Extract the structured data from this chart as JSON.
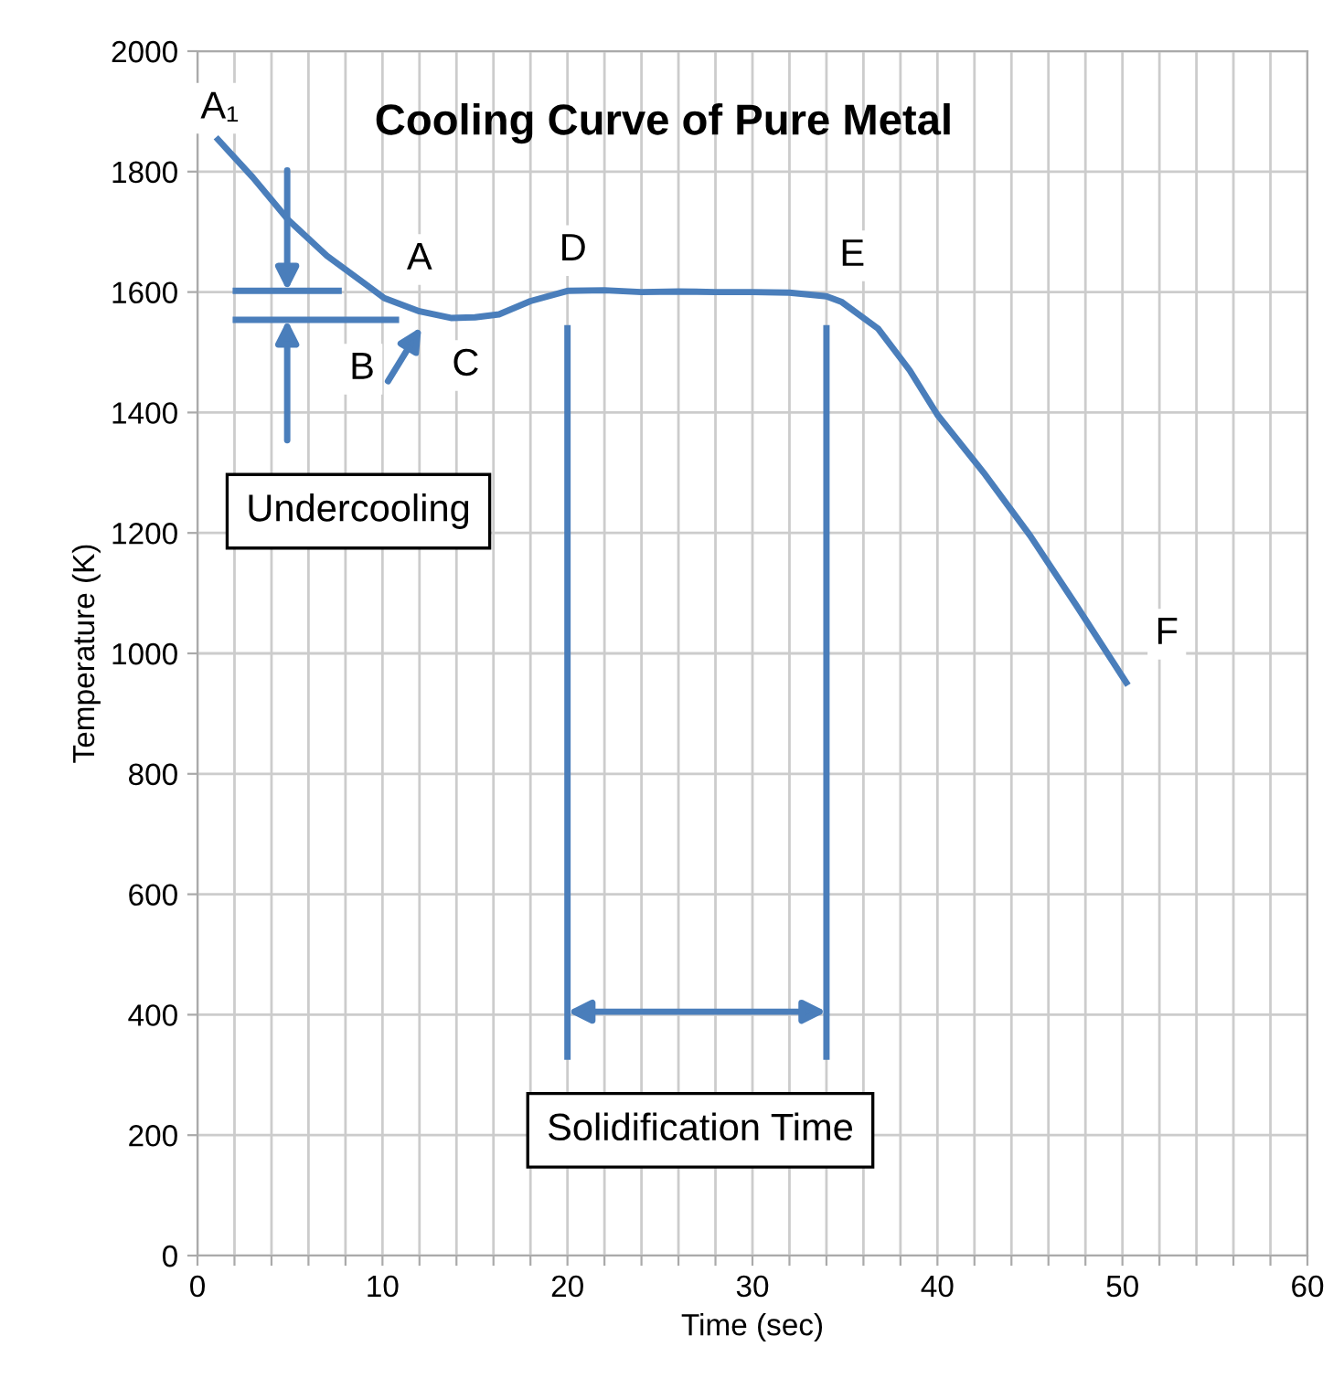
{
  "chart_data": {
    "type": "line",
    "title": "Cooling Curve of Pure Metal",
    "xlabel": "Time (sec)",
    "ylabel": "Temperature (K)",
    "xlim": [
      0,
      60
    ],
    "ylim": [
      0,
      2000
    ],
    "xticks": [
      0,
      {
        "value": 2,
        "label": null
      },
      {
        "value": 4,
        "label": null
      },
      {
        "value": 6,
        "label": null
      },
      {
        "value": 8,
        "label": null
      },
      10,
      {
        "value": 12,
        "label": null
      },
      {
        "value": 14,
        "label": null
      },
      {
        "value": 16,
        "label": null
      },
      {
        "value": 18,
        "label": null
      },
      20,
      {
        "value": 22,
        "label": null
      },
      {
        "value": 24,
        "label": null
      },
      {
        "value": 26,
        "label": null
      },
      {
        "value": 28,
        "label": null
      },
      30,
      {
        "value": 32,
        "label": null
      },
      {
        "value": 34,
        "label": null
      },
      {
        "value": 36,
        "label": null
      },
      {
        "value": 38,
        "label": null
      },
      40,
      {
        "value": 42,
        "label": null
      },
      {
        "value": 44,
        "label": null
      },
      {
        "value": 46,
        "label": null
      },
      {
        "value": 48,
        "label": null
      },
      50,
      {
        "value": 52,
        "label": null
      },
      {
        "value": 54,
        "label": null
      },
      {
        "value": 56,
        "label": null
      },
      {
        "value": 58,
        "label": null
      },
      60
    ],
    "yticks": [
      0,
      200,
      400,
      600,
      800,
      1000,
      1200,
      1400,
      1600,
      1800,
      2000
    ],
    "grid": true,
    "line_style": "solid",
    "series": [
      {
        "color": "#4a7ebb",
        "x": [
          1,
          3,
          4.9,
          7,
          9,
          10.1,
          12,
          13.7,
          15,
          16.3,
          18,
          20,
          22,
          24,
          26,
          28,
          30,
          32,
          34,
          34.8,
          36.8,
          38.5,
          40,
          42.5,
          45,
          47.5,
          50.3
        ],
        "values": [
          1857,
          1790,
          1720,
          1660,
          1615,
          1590,
          1568,
          1557,
          1558,
          1563,
          1585,
          1602,
          1603,
          1600,
          1601,
          1600,
          1600,
          1599,
          1593,
          1584,
          1539,
          1470,
          1396,
          1300,
          1196,
          1080,
          947
        ]
      },
      {
        "color": "#4a7ebb",
        "x": [
          1.9,
          7.8
        ],
        "values": [
          1602,
          1602
        ]
      },
      {
        "color": "#4a7ebb",
        "x": [
          1.9,
          10.9
        ],
        "values": [
          1554,
          1554
        ]
      },
      {
        "color": "#4a7ebb",
        "x": [
          20,
          20
        ],
        "values": [
          325,
          1545
        ]
      },
      {
        "color": "#4a7ebb",
        "x": [
          34,
          34
        ],
        "values": [
          325,
          1545
        ]
      }
    ],
    "annotations": [
      {
        "text": "A₁",
        "x": 1.2,
        "y": 1905
      },
      {
        "text": "A",
        "x": 12,
        "y": 1654
      },
      {
        "text": "B",
        "x": 8.9,
        "y": 1472
      },
      {
        "text": "C",
        "x": 14.5,
        "y": 1478
      },
      {
        "text": "D",
        "x": 20.3,
        "y": 1669
      },
      {
        "text": "E",
        "x": 35.4,
        "y": 1660
      },
      {
        "text": "F",
        "x": 52.4,
        "y": 1032
      },
      "Undercooling",
      "Solidification Time"
    ]
  }
}
